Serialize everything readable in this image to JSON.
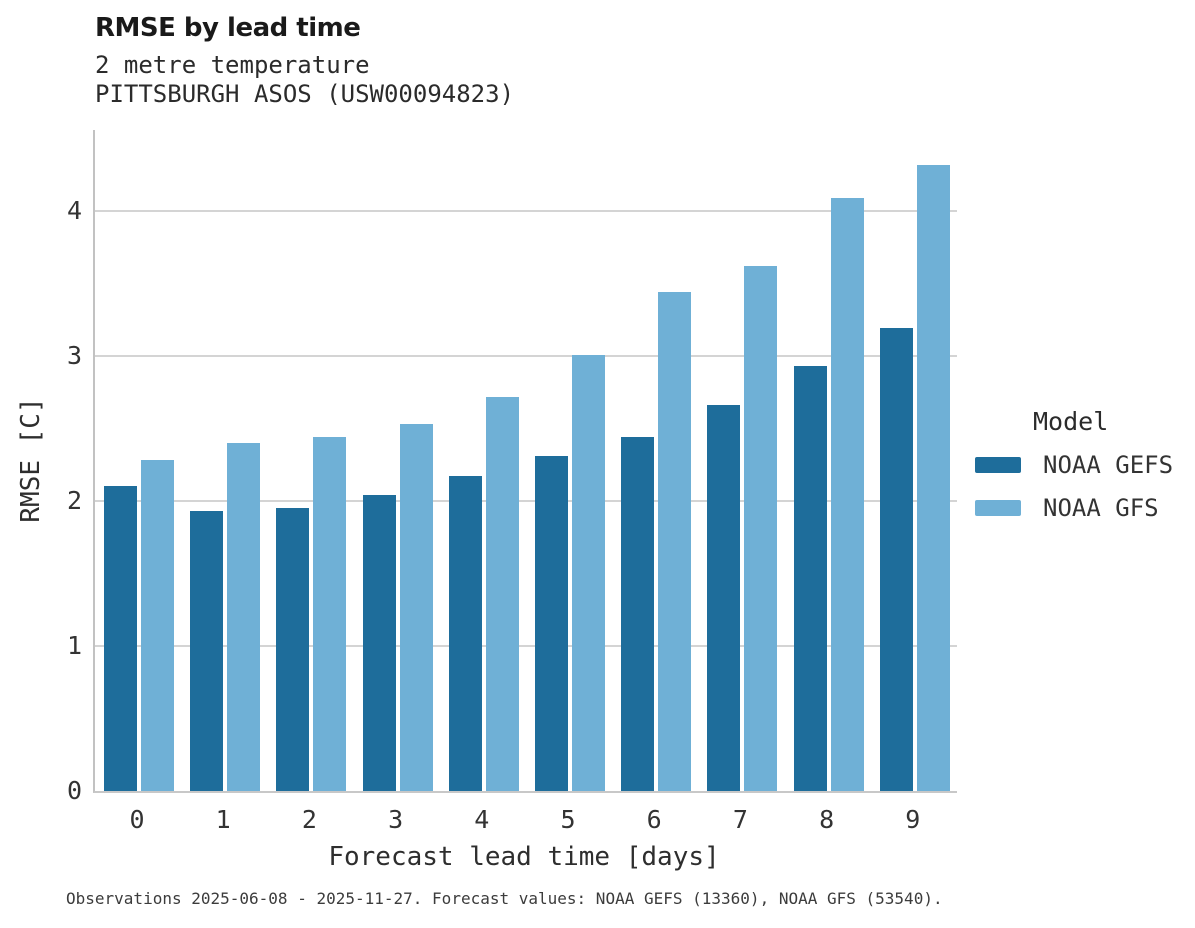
{
  "header": {
    "title": "RMSE by lead time",
    "subtitle1": "2 metre temperature",
    "subtitle2": "PITTSBURGH ASOS (USW00094823)"
  },
  "chart_data": {
    "type": "bar",
    "title": "RMSE by lead time",
    "subtitle": [
      "2 metre temperature",
      "PITTSBURGH ASOS (USW00094823)"
    ],
    "categories": [
      "0",
      "1",
      "2",
      "3",
      "4",
      "5",
      "6",
      "7",
      "8",
      "9"
    ],
    "series": [
      {
        "name": "NOAA GEFS",
        "color": "#1E6D9B",
        "values": [
          2.1,
          1.93,
          1.95,
          2.04,
          2.17,
          2.31,
          2.44,
          2.66,
          2.93,
          3.19
        ]
      },
      {
        "name": "NOAA GFS",
        "color": "#6FB0D6",
        "values": [
          2.28,
          2.4,
          2.44,
          2.53,
          2.72,
          3.01,
          3.44,
          3.62,
          4.09,
          4.32
        ]
      }
    ],
    "xlabel": "Forecast lead time [days]",
    "ylabel": "RMSE [C]",
    "ylim": [
      0,
      4.56
    ],
    "yticks": [
      0,
      1,
      2,
      3,
      4
    ],
    "grid": "horizontal",
    "legend": {
      "title": "Model",
      "position": "right"
    }
  },
  "caption": "Observations 2025-06-08 - 2025-11-27. Forecast values: NOAA GEFS (13360), NOAA GFS (53540)."
}
